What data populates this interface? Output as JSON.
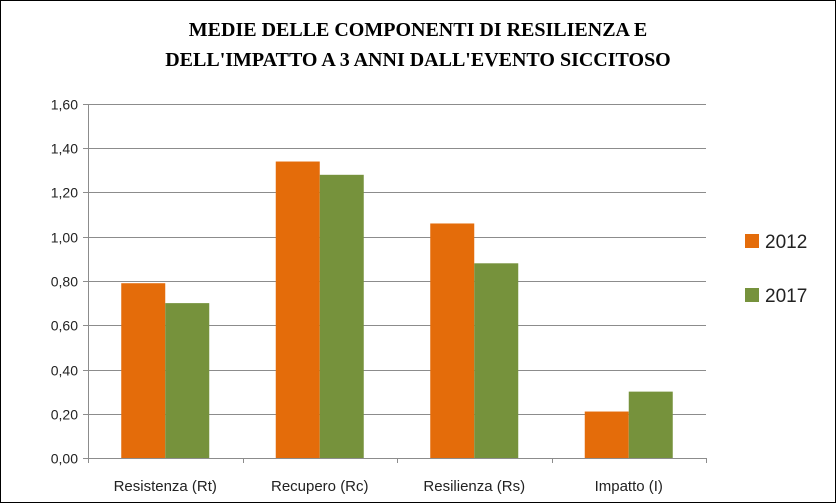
{
  "chart_data": {
    "type": "bar",
    "title": "MEDIE DELLE COMPONENTI DI RESILIENZA E DELL'IMPATTO A 3 ANNI DALL'EVENTO SICCITOSO",
    "title_lines": [
      "MEDIE DELLE COMPONENTI DI RESILIENZA E",
      "DELL'IMPATTO  A 3 ANNI DALL'EVENTO SICCITOSO"
    ],
    "xlabel": "",
    "ylabel": "",
    "categories": [
      "Resistenza (Rt)",
      "Recupero (Rc)",
      "Resilienza (Rs)",
      "Impatto (I)"
    ],
    "series": [
      {
        "name": "2012",
        "values": [
          0.79,
          1.34,
          1.06,
          0.21
        ],
        "color": "#E46C0A"
      },
      {
        "name": "2017",
        "values": [
          0.7,
          1.28,
          0.88,
          0.3
        ],
        "color": "#76923C"
      }
    ],
    "ylim": [
      0,
      1.6
    ],
    "yticks": [
      "0,00",
      "0,20",
      "0,40",
      "0,60",
      "0,80",
      "1,00",
      "1,20",
      "1,40",
      "1,60"
    ],
    "grid": true,
    "legend_position": "right"
  }
}
